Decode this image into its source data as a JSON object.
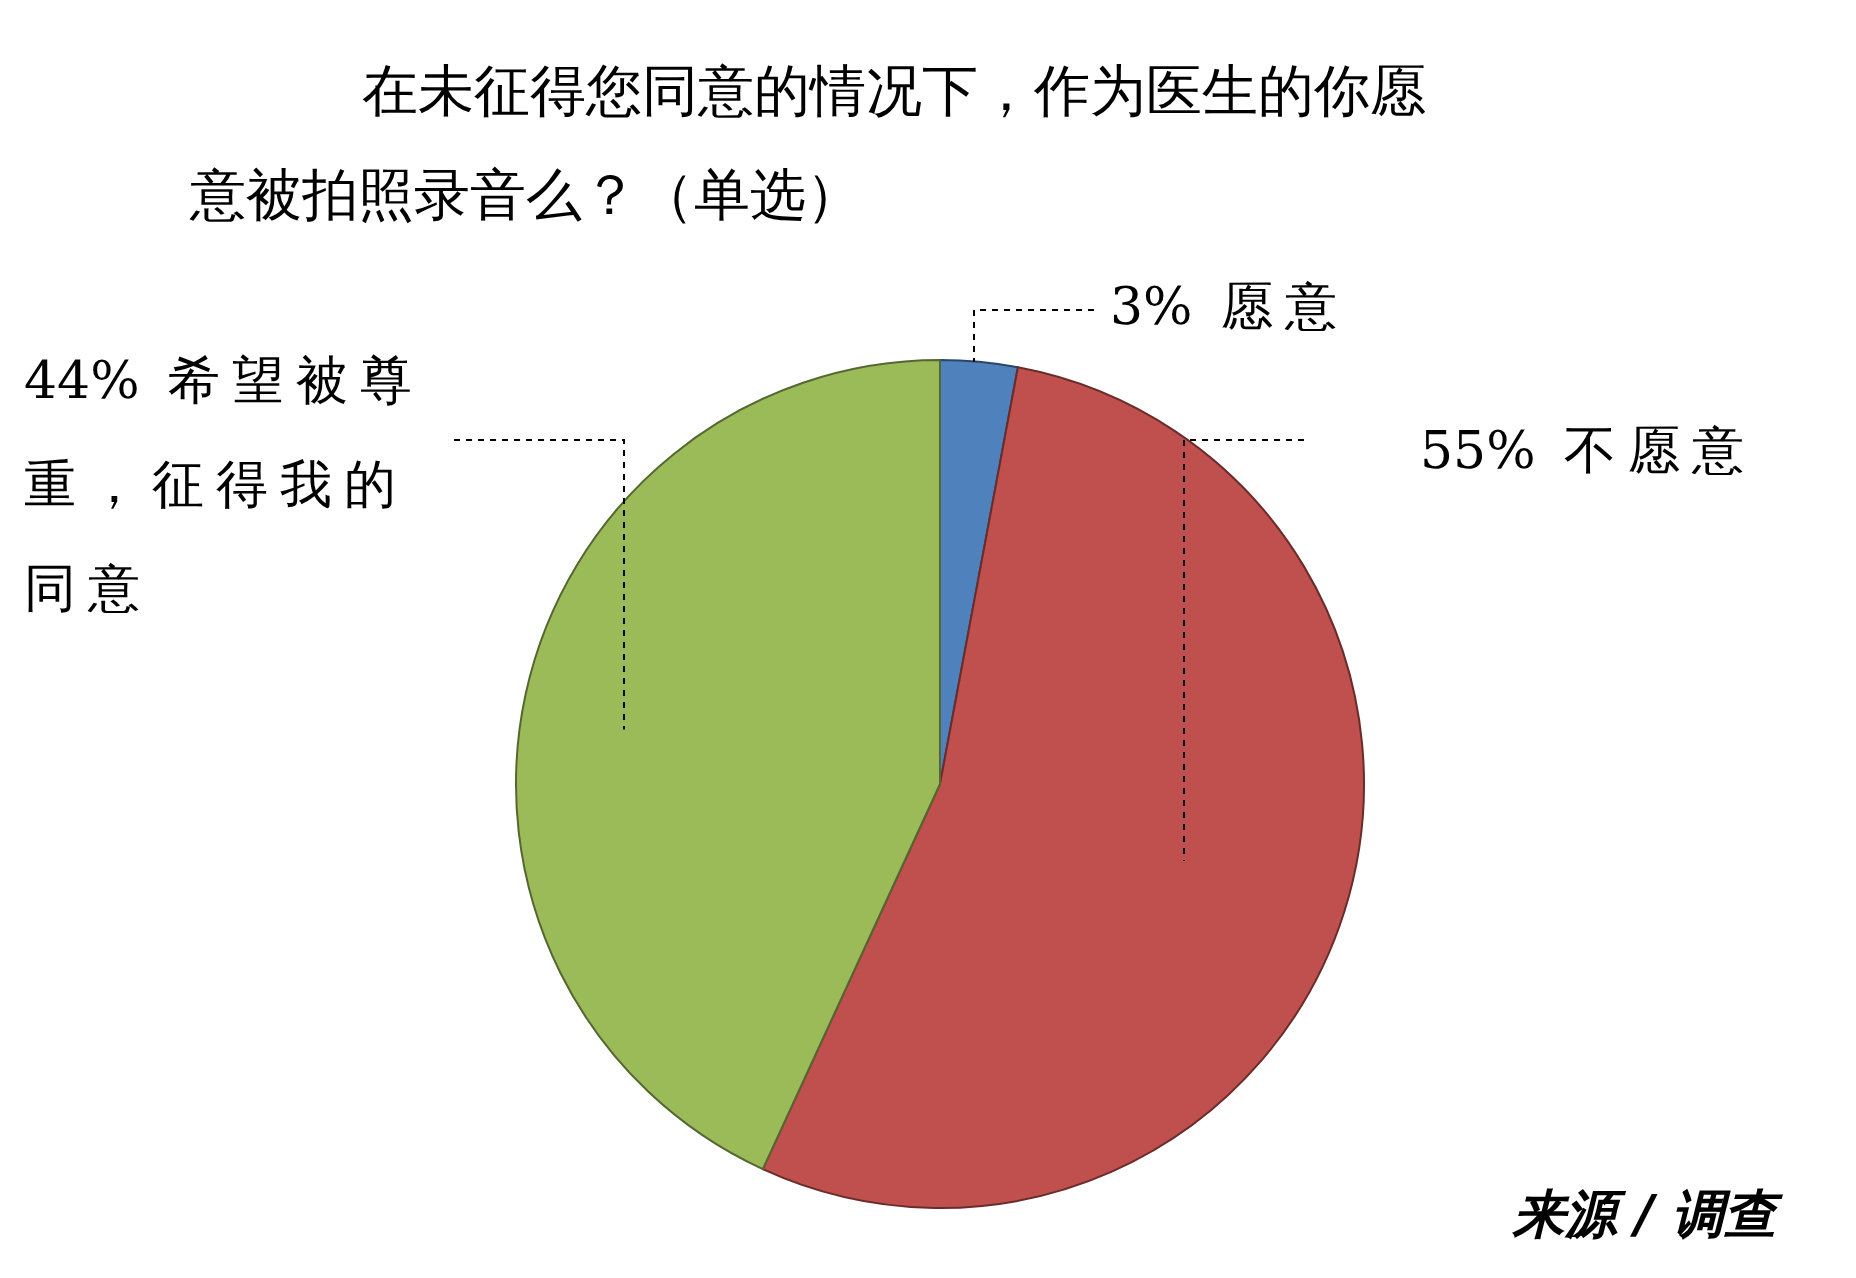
{
  "chart_data": {
    "type": "pie",
    "title": "在未征得您同意的情况下，作为医生的你愿意被拍照录音么？（单选）",
    "categories": [
      "愿意",
      "不愿意",
      "希望被尊重，征得我的同意"
    ],
    "values": [
      3,
      55,
      44
    ],
    "colors": [
      "#4f81bd",
      "#c0504d",
      "#9bbb59"
    ],
    "value_labels": [
      "3%",
      "55%",
      "44%"
    ],
    "legend": false,
    "annotations": [
      "来源 / 调查"
    ]
  }
}
